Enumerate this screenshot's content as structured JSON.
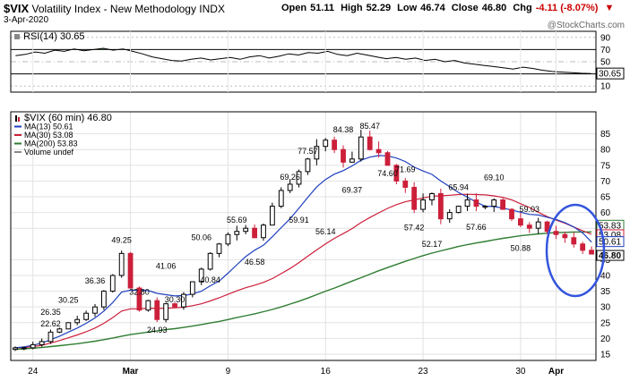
{
  "header": {
    "symbol": "$VIX",
    "name": "Volatility Index - New Methodology INDX",
    "date": "3-Apr-2020",
    "open_label": "Open",
    "open": "51.11",
    "high_label": "High",
    "high": "52.29",
    "low_label": "Low",
    "low": "46.74",
    "close_label": "Close",
    "close": "46.80",
    "chg_label": "Chg",
    "chg": "-4.11 (-8.07%)",
    "logo": "@StockCharts.com"
  },
  "rsi_panel": {
    "legend": "RSI(14) 30.65",
    "levels": [
      90,
      70,
      50,
      30,
      10
    ],
    "current_label": "30.65",
    "values": [
      60,
      62,
      66,
      64,
      69,
      67,
      71,
      68,
      70,
      72,
      69,
      71,
      67,
      63,
      58,
      55,
      52,
      51,
      54,
      56,
      53,
      55,
      57,
      54,
      58,
      60,
      56,
      59,
      63,
      61,
      65,
      64,
      67,
      62,
      60,
      64,
      61,
      58,
      55,
      57,
      54,
      56,
      52,
      54,
      50,
      52,
      48,
      46,
      44,
      42,
      40,
      38,
      41,
      39,
      36,
      34,
      33,
      32,
      31,
      30.65
    ],
    "colors": {
      "line": "#000000",
      "fill_above": "#2e7d32"
    }
  },
  "chart_data": {
    "type": "candlestick",
    "legend": [
      {
        "label": "$VIX (60 min) 46.80",
        "color": "#000000"
      },
      {
        "label": "MA(13) 50.61",
        "color": "#1f3fbf"
      },
      {
        "label": "MA(30) 53.08",
        "color": "#cc1f3a"
      },
      {
        "label": "MA(200) 53.83",
        "color": "#2e7d32"
      },
      {
        "label": "Volume undef",
        "color": "#888888"
      }
    ],
    "y_ticks": [
      15,
      20,
      25,
      30,
      35,
      40,
      45,
      55,
      60,
      65,
      70,
      75,
      80,
      85
    ],
    "ylim": [
      13,
      92
    ],
    "last_value_labels": [
      "53.83",
      "53.08",
      "50.61",
      "46.80"
    ],
    "x_ticks": [
      {
        "label": "24",
        "bar": 2
      },
      {
        "label": "Mar",
        "bar": 13
      },
      {
        "label": "9",
        "bar": 24
      },
      {
        "label": "16",
        "bar": 35
      },
      {
        "label": "23",
        "bar": 46
      },
      {
        "label": "30",
        "bar": 57
      },
      {
        "label": "Apr",
        "bar": 61
      }
    ],
    "n_bars": 66,
    "price_path": [
      17,
      17,
      18,
      19,
      22,
      23,
      25,
      26,
      28,
      30,
      35,
      40,
      47,
      36,
      29,
      32,
      26,
      31,
      30,
      34,
      38,
      42,
      47,
      50,
      53,
      54,
      55,
      52,
      56,
      62,
      67,
      69,
      73,
      77,
      81,
      83,
      80,
      76,
      77,
      84,
      80,
      79,
      75,
      70,
      68,
      61,
      64,
      66,
      58,
      60,
      62,
      64,
      62,
      62,
      64,
      61,
      58,
      56,
      55,
      57,
      54,
      53,
      52,
      50,
      48,
      46.8
    ],
    "ma13": [
      17,
      17.3,
      17.8,
      18.5,
      19.6,
      20.7,
      22,
      23.3,
      24.8,
      26.5,
      28.7,
      31.4,
      34.7,
      35.3,
      35.3,
      35.2,
      34.3,
      33.9,
      33.5,
      33.6,
      34.1,
      35,
      36.7,
      38.2,
      40.7,
      43.4,
      46,
      48,
      49.6,
      52.3,
      55.2,
      58,
      61.4,
      64.8,
      68.1,
      70.5,
      72.2,
      73.3,
      74.8,
      76.6,
      77.6,
      78.1,
      78,
      77.3,
      76.2,
      74.4,
      73.2,
      72.1,
      70,
      68.2,
      66.4,
      64.9,
      63.3,
      62,
      61.9,
      61.4,
      60.8,
      60.1,
      59.4,
      59.2,
      58.5,
      57.8,
      56.8,
      55.4,
      53.5,
      50.61
    ],
    "ma30": [
      17,
      17.1,
      17.4,
      17.8,
      18.5,
      19.3,
      20.2,
      21.1,
      22.1,
      23.3,
      24.8,
      26.6,
      28.7,
      29.4,
      29.4,
      29.6,
      29.5,
      29.6,
      29.7,
      29.9,
      30.4,
      31,
      31.9,
      32.9,
      34,
      35.1,
      36.1,
      36.9,
      37.8,
      39,
      40.6,
      42.2,
      44.1,
      46.1,
      48.1,
      50,
      51.8,
      53.3,
      54.9,
      56.8,
      58.4,
      59.9,
      61.3,
      62.5,
      63.4,
      64,
      64.6,
      65.2,
      65.3,
      65.5,
      65.7,
      65.8,
      65.7,
      65.6,
      65.3,
      64.8,
      64,
      62.8,
      61.6,
      60.1,
      58.7,
      57.6,
      56.6,
      55.4,
      54.2,
      53.08
    ],
    "ma200": [
      16.5,
      16.7,
      16.9,
      17.1,
      17.4,
      17.7,
      18,
      18.3,
      18.7,
      19.1,
      19.6,
      20.1,
      20.7,
      21.2,
      21.6,
      22,
      22.4,
      22.8,
      23.1,
      23.5,
      23.9,
      24.4,
      24.9,
      25.4,
      26,
      26.6,
      27.2,
      27.8,
      28.5,
      29.2,
      30,
      30.9,
      31.8,
      32.8,
      33.9,
      35,
      36,
      37.1,
      38.2,
      39.3,
      40.4,
      41.5,
      42.5,
      43.5,
      44.5,
      45.4,
      46.3,
      47.1,
      47.8,
      48.5,
      49.2,
      49.8,
      50.3,
      50.8,
      51.3,
      51.8,
      52.2,
      52.6,
      52.9,
      53.2,
      53.4,
      53.6,
      53.7,
      53.8,
      53.8,
      53.83
    ],
    "annotations": [
      {
        "label": "22.62",
        "bar": 4
      },
      {
        "label": "26.35",
        "bar": 4
      },
      {
        "label": "30.25",
        "bar": 6
      },
      {
        "label": "36.36",
        "bar": 9
      },
      {
        "label": "49.25",
        "bar": 12
      },
      {
        "label": "32.80",
        "bar": 14
      },
      {
        "label": "24.93",
        "bar": 16
      },
      {
        "label": "41.06",
        "bar": 17
      },
      {
        "label": "30.30",
        "bar": 18
      },
      {
        "label": "50.06",
        "bar": 21
      },
      {
        "label": "40.84",
        "bar": 22
      },
      {
        "label": "55.69",
        "bar": 25
      },
      {
        "label": "46.58",
        "bar": 27
      },
      {
        "label": "69.26",
        "bar": 31
      },
      {
        "label": "59.91",
        "bar": 32
      },
      {
        "label": "77.57",
        "bar": 33
      },
      {
        "label": "56.14",
        "bar": 35
      },
      {
        "label": "84.38",
        "bar": 37
      },
      {
        "label": "69.37",
        "bar": 38
      },
      {
        "label": "85.47",
        "bar": 40
      },
      {
        "label": "74.60",
        "bar": 42
      },
      {
        "label": "71.69",
        "bar": 44
      },
      {
        "label": "57.42",
        "bar": 45
      },
      {
        "label": "52.17",
        "bar": 47
      },
      {
        "label": "65.94",
        "bar": 50
      },
      {
        "label": "57.66",
        "bar": 52
      },
      {
        "label": "69.10",
        "bar": 54
      },
      {
        "label": "59.03",
        "bar": 58
      },
      {
        "label": "50.88",
        "bar": 57
      }
    ]
  }
}
